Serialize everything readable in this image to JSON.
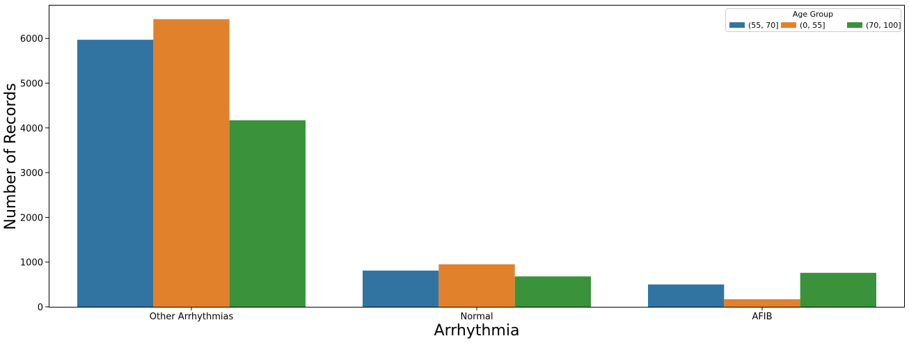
{
  "chart_data": {
    "type": "bar",
    "xlabel": "Arrhythmia",
    "ylabel": "Number of Records",
    "categories": [
      "Other Arrhythmias",
      "Normal",
      "AFIB"
    ],
    "series": [
      {
        "name": "(55, 70]",
        "color": "#3274a1",
        "values": [
          5970,
          810,
          500
        ]
      },
      {
        "name": "(0, 55]",
        "color": "#e1812c",
        "values": [
          6430,
          950,
          170
        ]
      },
      {
        "name": "(70, 100]",
        "color": "#3a923a",
        "values": [
          4170,
          680,
          760
        ]
      }
    ],
    "ylim": [
      0,
      6750
    ],
    "yticks": [
      0,
      1000,
      2000,
      3000,
      4000,
      5000,
      6000
    ],
    "grid": false,
    "legend": {
      "title": "Age Group",
      "position": "top-right",
      "columns": 3
    }
  }
}
